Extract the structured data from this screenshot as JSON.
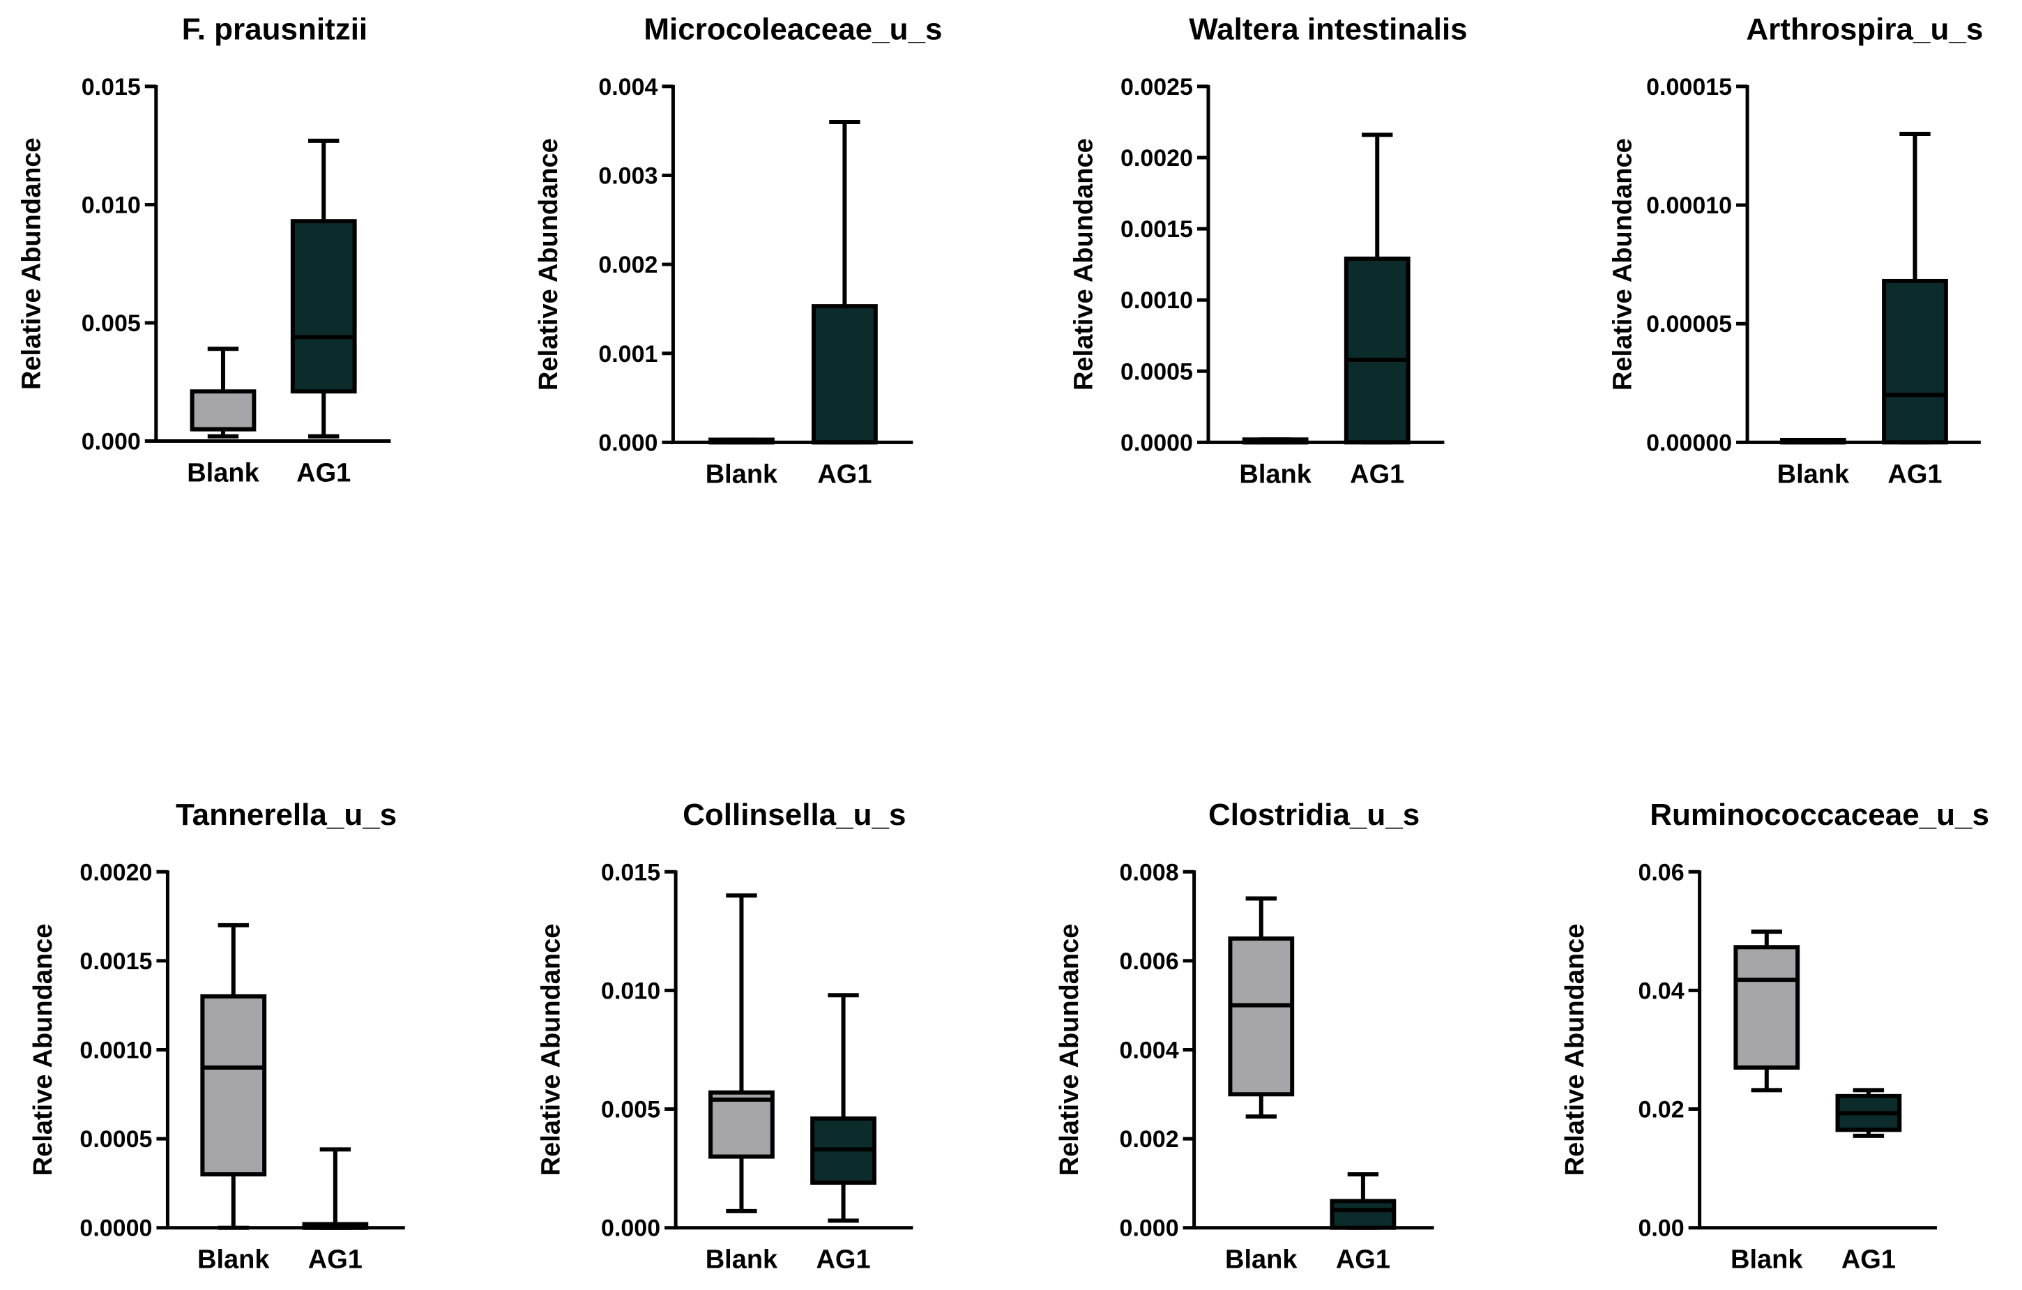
{
  "colors": {
    "Blank": "#a6a5aa",
    "AG1": "#0b2c2b",
    "stroke": "#000000"
  },
  "chart_data": [
    {
      "type": "box",
      "title": "F. prausnitzii",
      "ylabel": "Relative Abundance",
      "ylim": [
        0,
        0.015
      ],
      "yticks": [
        0,
        0.005,
        0.01,
        0.015
      ],
      "ytick_labels": [
        "0.000",
        "0.005",
        "0.010",
        "0.015"
      ],
      "categories": [
        "Blank",
        "AG1"
      ],
      "series": [
        {
          "name": "Blank",
          "min": 0.0002,
          "q1": 0.0005,
          "median": 0.0005,
          "q3": 0.0021,
          "max": 0.0039
        },
        {
          "name": "AG1",
          "min": 0.0002,
          "q1": 0.0021,
          "median": 0.0044,
          "q3": 0.0093,
          "max": 0.0127
        }
      ]
    },
    {
      "type": "box",
      "title": "Microcoleaceae_u_s",
      "ylabel": "Relative Abundance",
      "ylim": [
        0,
        0.004
      ],
      "yticks": [
        0,
        0.001,
        0.002,
        0.003,
        0.004
      ],
      "ytick_labels": [
        "0.000",
        "0.001",
        "0.002",
        "0.003",
        "0.004"
      ],
      "categories": [
        "Blank",
        "AG1"
      ],
      "series": [
        {
          "name": "Blank",
          "min": 0,
          "q1": 0,
          "median": 0,
          "q3": 3e-05,
          "max": 3e-05
        },
        {
          "name": "AG1",
          "min": 0,
          "q1": 0,
          "median": 0,
          "q3": 0.00153,
          "max": 0.0036
        }
      ]
    },
    {
      "type": "box",
      "title": "Waltera intestinalis",
      "ylabel": "Relative Abundance",
      "ylim": [
        0,
        0.0025
      ],
      "yticks": [
        0,
        0.0005,
        0.001,
        0.0015,
        0.002,
        0.0025
      ],
      "ytick_labels": [
        "0.0000",
        "0.0005",
        "0.0010",
        "0.0015",
        "0.0020",
        "0.0025"
      ],
      "categories": [
        "Blank",
        "AG1"
      ],
      "series": [
        {
          "name": "Blank",
          "min": 0,
          "q1": 0,
          "median": 0,
          "q3": 2e-05,
          "max": 2e-05
        },
        {
          "name": "AG1",
          "min": 0,
          "q1": 0,
          "median": 0.00058,
          "q3": 0.00129,
          "max": 0.00216
        }
      ]
    },
    {
      "type": "box",
      "title": "Arthrospira_u_s",
      "ylabel": "Relative Abundance",
      "ylim": [
        0,
        0.00015
      ],
      "yticks": [
        0,
        5e-05,
        0.0001,
        0.00015
      ],
      "ytick_labels": [
        "0.00000",
        "0.00005",
        "0.00010",
        "0.00015"
      ],
      "categories": [
        "Blank",
        "AG1"
      ],
      "series": [
        {
          "name": "Blank",
          "min": 0,
          "q1": 0,
          "median": 0,
          "q3": 1e-06,
          "max": 1e-06
        },
        {
          "name": "AG1",
          "min": 0,
          "q1": 0,
          "median": 2e-05,
          "q3": 6.8e-05,
          "max": 0.00013
        }
      ]
    },
    {
      "type": "box",
      "title": "Tannerella_u_s",
      "ylabel": "Relative Abundance",
      "ylim": [
        0,
        0.002
      ],
      "yticks": [
        0,
        0.0005,
        0.001,
        0.0015,
        0.002
      ],
      "ytick_labels": [
        "0.0000",
        "0.0005",
        "0.0010",
        "0.0015",
        "0.0020"
      ],
      "categories": [
        "Blank",
        "AG1"
      ],
      "series": [
        {
          "name": "Blank",
          "min": 0,
          "q1": 0.0003,
          "median": 0.0009,
          "q3": 0.0013,
          "max": 0.0017
        },
        {
          "name": "AG1",
          "min": 0,
          "q1": 0,
          "median": 0,
          "q3": 2e-05,
          "max": 0.00044
        }
      ]
    },
    {
      "type": "box",
      "title": "Collinsella_u_s",
      "ylabel": "Relative Abundance",
      "ylim": [
        0,
        0.015
      ],
      "yticks": [
        0,
        0.005,
        0.01,
        0.015
      ],
      "ytick_labels": [
        "0.000",
        "0.005",
        "0.010",
        "0.015"
      ],
      "categories": [
        "Blank",
        "AG1"
      ],
      "series": [
        {
          "name": "Blank",
          "min": 0.0007,
          "q1": 0.003,
          "median": 0.0054,
          "q3": 0.0057,
          "max": 0.014
        },
        {
          "name": "AG1",
          "min": 0.0003,
          "q1": 0.0019,
          "median": 0.0033,
          "q3": 0.0046,
          "max": 0.0098
        }
      ]
    },
    {
      "type": "box",
      "title": "Clostridia_u_s",
      "ylabel": "Relative Abundance",
      "ylim": [
        0,
        0.008
      ],
      "yticks": [
        0,
        0.002,
        0.004,
        0.006,
        0.008
      ],
      "ytick_labels": [
        "0.000",
        "0.002",
        "0.004",
        "0.006",
        "0.008"
      ],
      "categories": [
        "Blank",
        "AG1"
      ],
      "series": [
        {
          "name": "Blank",
          "min": 0.0025,
          "q1": 0.003,
          "median": 0.005,
          "q3": 0.0065,
          "max": 0.0074
        },
        {
          "name": "AG1",
          "min": 0,
          "q1": 0,
          "median": 0.0004,
          "q3": 0.0006,
          "max": 0.0012
        }
      ]
    },
    {
      "type": "box",
      "title": "Ruminococcaceae_u_s",
      "ylabel": "Relative Abundance",
      "ylim": [
        0,
        0.06
      ],
      "yticks": [
        0,
        0.02,
        0.04,
        0.06
      ],
      "ytick_labels": [
        "0.00",
        "0.02",
        "0.04",
        "0.06"
      ],
      "categories": [
        "Blank",
        "AG1"
      ],
      "series": [
        {
          "name": "Blank",
          "min": 0.0232,
          "q1": 0.027,
          "median": 0.0418,
          "q3": 0.0473,
          "max": 0.0499
        },
        {
          "name": "AG1",
          "min": 0.0155,
          "q1": 0.0165,
          "median": 0.0193,
          "q3": 0.0222,
          "max": 0.0232
        }
      ]
    }
  ]
}
